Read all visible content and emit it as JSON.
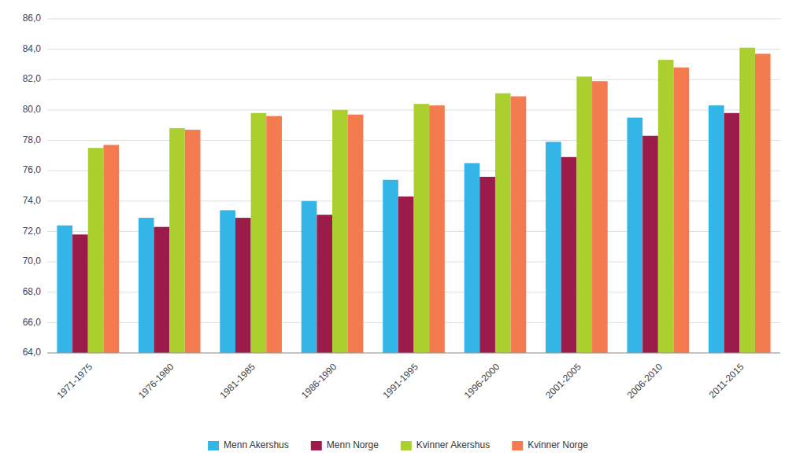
{
  "chart_data": {
    "type": "bar",
    "categories": [
      "1971-1975",
      "1976-1980",
      "1981-1985",
      "1986-1990",
      "1991-1995",
      "1996-2000",
      "2001-2005",
      "2006-2010",
      "2011-2015"
    ],
    "series": [
      {
        "name": "Menn Akershus",
        "color": "#33B5E8",
        "values": [
          72.4,
          72.9,
          73.4,
          74.0,
          75.4,
          76.5,
          77.9,
          79.5,
          80.3
        ]
      },
      {
        "name": "Menn Norge",
        "color": "#9B1B4B",
        "values": [
          71.8,
          72.3,
          72.9,
          73.1,
          74.3,
          75.6,
          76.9,
          78.3,
          79.8
        ]
      },
      {
        "name": "Kvinner Akershus",
        "color": "#AACF2F",
        "values": [
          77.5,
          78.8,
          79.8,
          80.0,
          80.4,
          81.1,
          82.2,
          83.3,
          84.1
        ]
      },
      {
        "name": "Kvinner Norge",
        "color": "#F47B50",
        "values": [
          77.7,
          78.7,
          79.6,
          79.7,
          80.3,
          80.9,
          81.9,
          82.8,
          83.7
        ]
      }
    ],
    "ylim": [
      64.0,
      86.0
    ],
    "yticks": [
      {
        "value": 64.0,
        "label": "64,0"
      },
      {
        "value": 66.0,
        "label": "66,0"
      },
      {
        "value": 68.0,
        "label": "68,0"
      },
      {
        "value": 70.0,
        "label": "70,0"
      },
      {
        "value": 72.0,
        "label": "72,0"
      },
      {
        "value": 74.0,
        "label": "74,0"
      },
      {
        "value": 76.0,
        "label": "76,0"
      },
      {
        "value": 78.0,
        "label": "78,0"
      },
      {
        "value": 80.0,
        "label": "80,0"
      },
      {
        "value": 82.0,
        "label": "82,0"
      },
      {
        "value": 84.0,
        "label": "84,0"
      },
      {
        "value": 86.0,
        "label": "86,0"
      }
    ],
    "grid": true,
    "legend": "bottom"
  }
}
